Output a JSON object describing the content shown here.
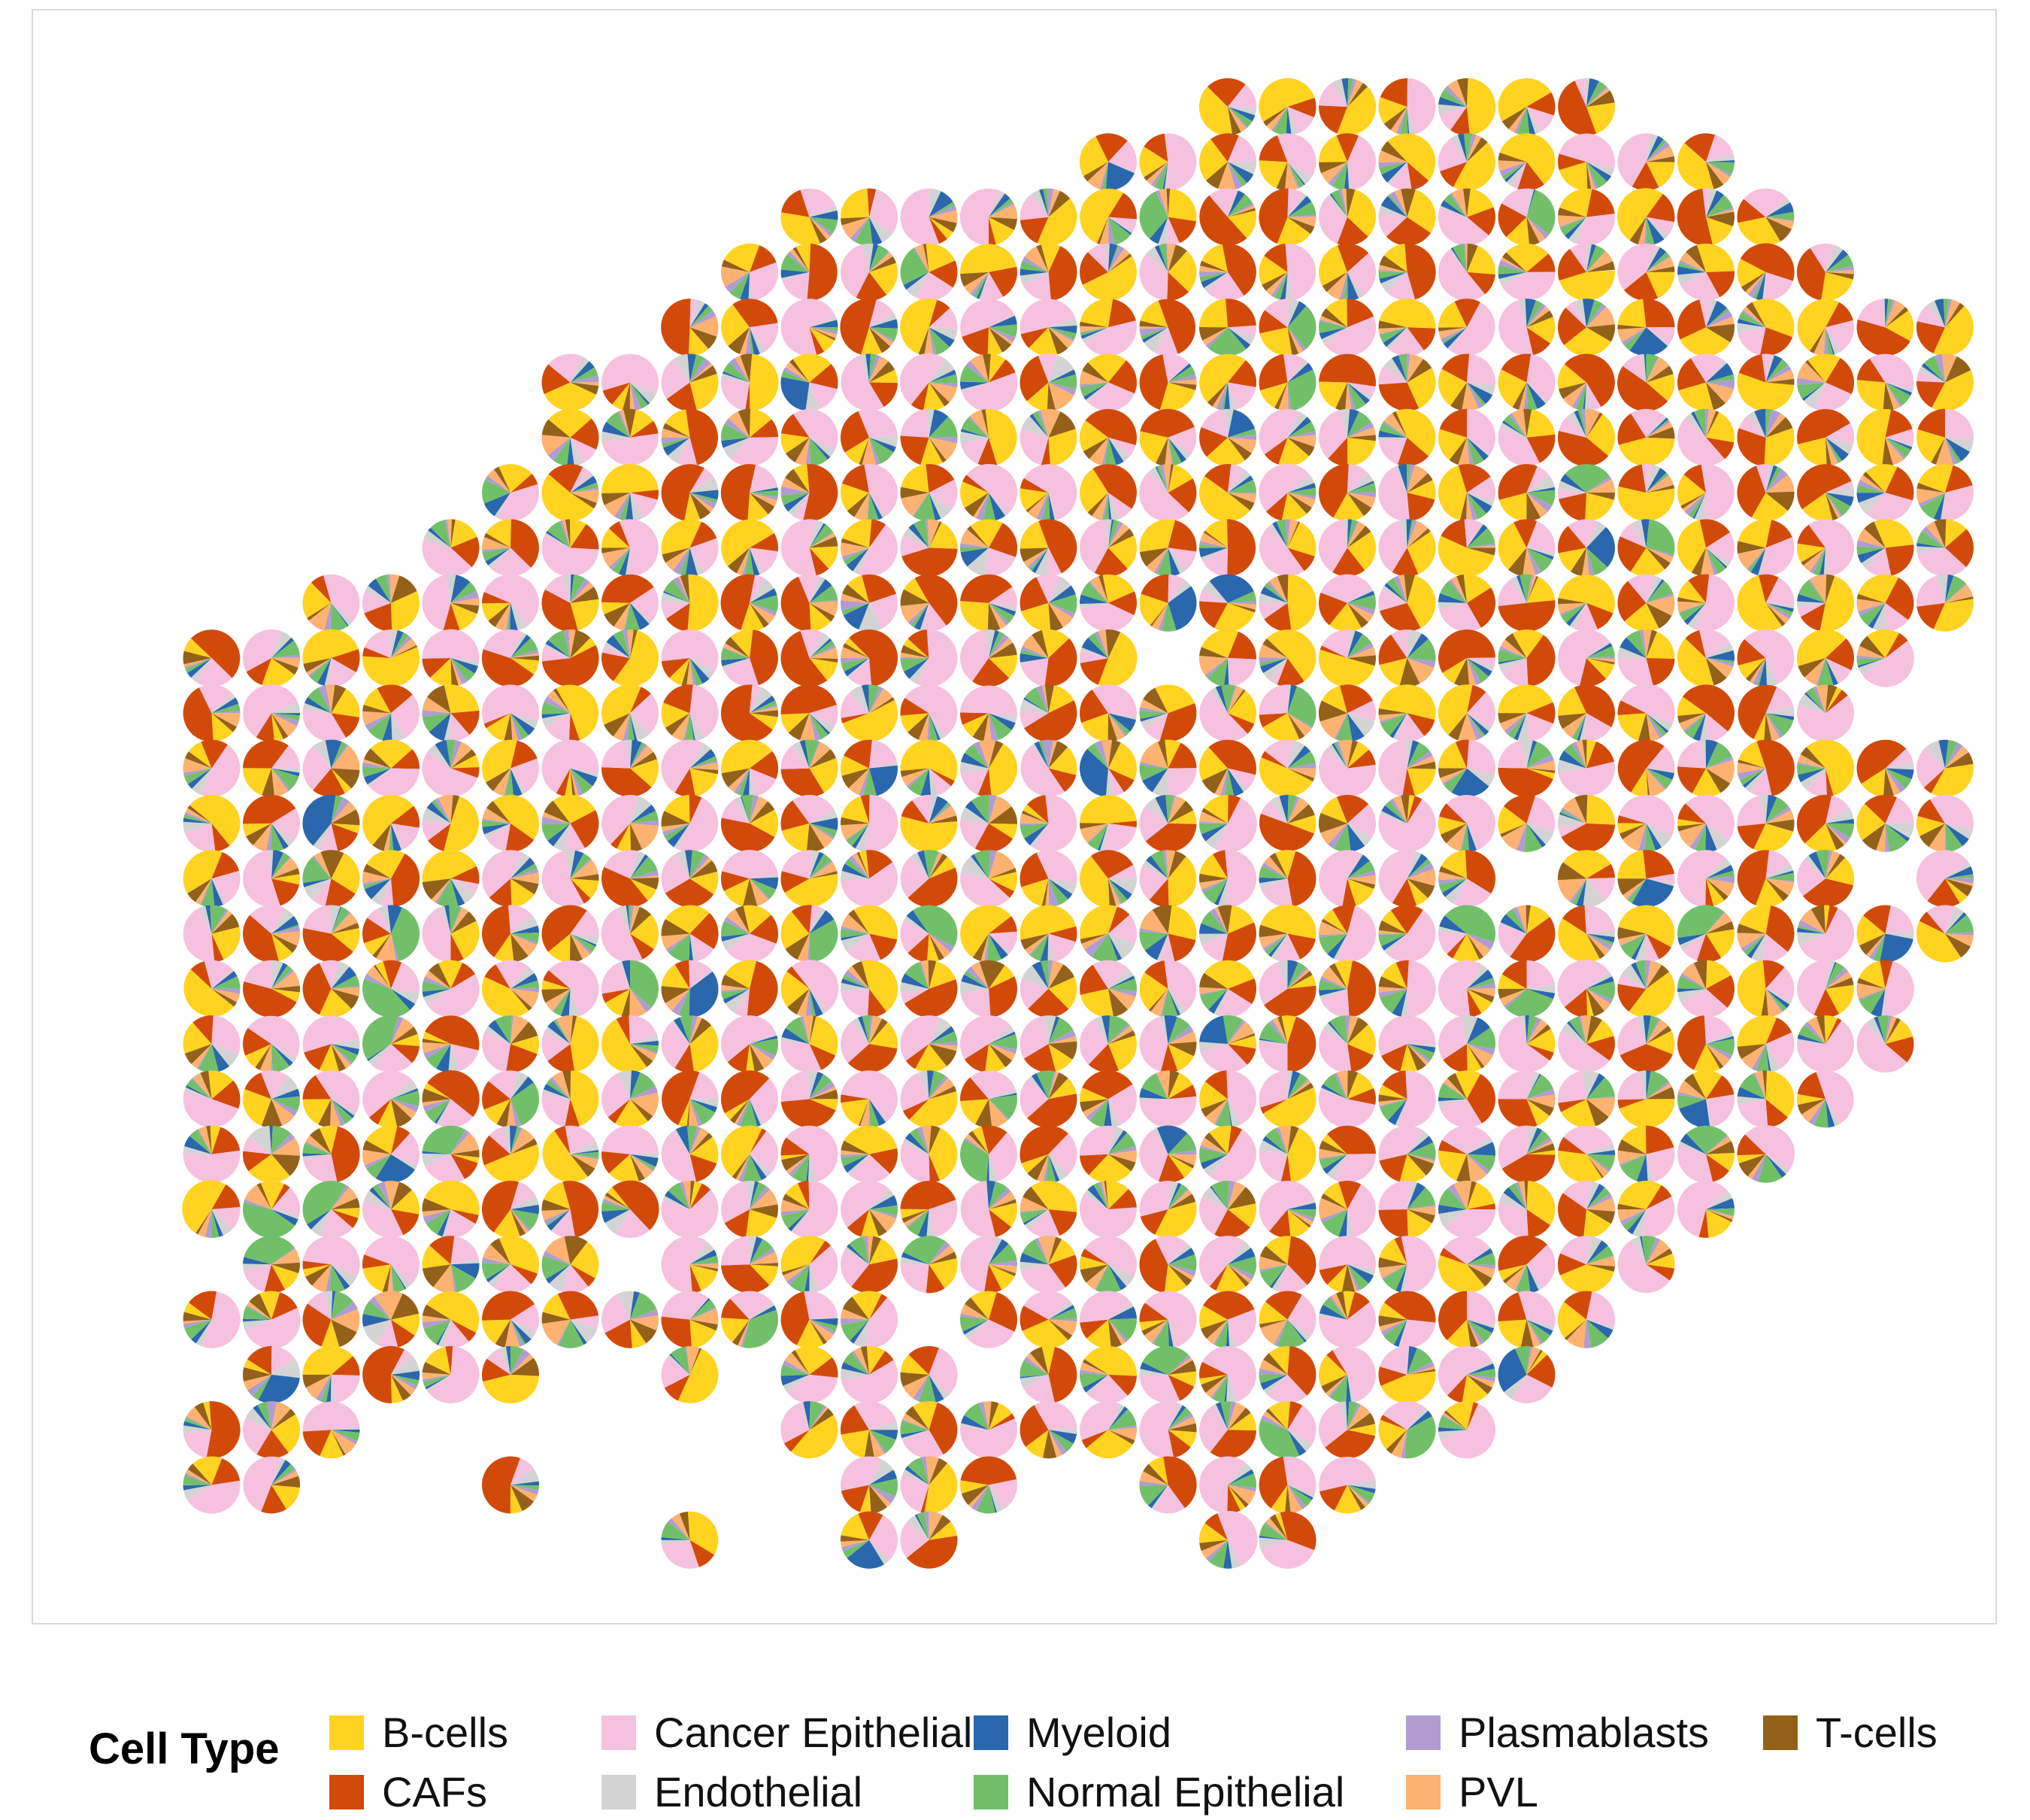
{
  "chart_data": {
    "type": "scatter-pie",
    "title": "",
    "xlabel": "",
    "ylabel": "",
    "grid": false,
    "axes_visible": false,
    "legend": {
      "title": "Cell Type",
      "placement": "bottom",
      "entries": [
        {
          "name": "B-cells",
          "color": "#FFD320"
        },
        {
          "name": "CAFs",
          "color": "#D24A0A"
        },
        {
          "name": "Cancer Epithelial",
          "color": "#F6C1DF"
        },
        {
          "name": "Endothelial",
          "color": "#D3D3D3"
        },
        {
          "name": "Myeloid",
          "color": "#2A67AD"
        },
        {
          "name": "Normal Epithelial",
          "color": "#72BF6A"
        },
        {
          "name": "Plasmablasts",
          "color": "#B19CD0"
        },
        {
          "name": "PVL",
          "color": "#FDB271"
        },
        {
          "name": "T-cells",
          "color": "#93611A"
        }
      ]
    },
    "grid_layout": {
      "columns": 31,
      "rows": 27
    },
    "spot_rows": [
      {
        "row": 0,
        "cols": [
          [
            18,
            24
          ]
        ]
      },
      {
        "row": 1,
        "cols": [
          [
            16,
            26
          ]
        ]
      },
      {
        "row": 2,
        "cols": [
          [
            11,
            27
          ]
        ]
      },
      {
        "row": 3,
        "cols": [
          [
            10,
            28
          ]
        ]
      },
      {
        "row": 4,
        "cols": [
          [
            9,
            30
          ]
        ]
      },
      {
        "row": 5,
        "cols": [
          [
            7,
            30
          ]
        ]
      },
      {
        "row": 6,
        "cols": [
          [
            7,
            30
          ]
        ]
      },
      {
        "row": 7,
        "cols": [
          [
            6,
            30
          ]
        ]
      },
      {
        "row": 8,
        "cols": [
          [
            5,
            30
          ]
        ]
      },
      {
        "row": 9,
        "cols": [
          [
            3,
            30
          ]
        ]
      },
      {
        "row": 10,
        "cols": [
          [
            1,
            16
          ],
          [
            18,
            29
          ]
        ]
      },
      {
        "row": 11,
        "cols": [
          [
            1,
            28
          ]
        ]
      },
      {
        "row": 12,
        "cols": [
          [
            1,
            30
          ]
        ]
      },
      {
        "row": 13,
        "cols": [
          [
            1,
            30
          ]
        ]
      },
      {
        "row": 14,
        "cols": [
          [
            1,
            22
          ],
          [
            24,
            28
          ],
          [
            30,
            30
          ]
        ]
      },
      {
        "row": 15,
        "cols": [
          [
            1,
            30
          ]
        ]
      },
      {
        "row": 16,
        "cols": [
          [
            1,
            29
          ]
        ]
      },
      {
        "row": 17,
        "cols": [
          [
            1,
            29
          ]
        ]
      },
      {
        "row": 18,
        "cols": [
          [
            1,
            28
          ]
        ]
      },
      {
        "row": 19,
        "cols": [
          [
            1,
            27
          ]
        ]
      },
      {
        "row": 20,
        "cols": [
          [
            1,
            26
          ]
        ]
      },
      {
        "row": 21,
        "cols": [
          [
            2,
            7
          ],
          [
            9,
            25
          ]
        ]
      },
      {
        "row": 22,
        "cols": [
          [
            1,
            12
          ],
          [
            14,
            24
          ]
        ]
      },
      {
        "row": 23,
        "cols": [
          [
            2,
            6
          ],
          [
            9,
            9
          ],
          [
            11,
            13
          ],
          [
            15,
            23
          ]
        ]
      },
      {
        "row": 24,
        "cols": [
          [
            1,
            3
          ],
          [
            11,
            22
          ]
        ]
      },
      {
        "row": 25,
        "cols": [
          [
            1,
            2
          ],
          [
            6,
            6
          ],
          [
            12,
            14
          ],
          [
            17,
            20
          ]
        ]
      },
      {
        "row": 26,
        "cols": [
          [
            9,
            9
          ],
          [
            12,
            13
          ],
          [
            18,
            19
          ]
        ]
      }
    ]
  }
}
